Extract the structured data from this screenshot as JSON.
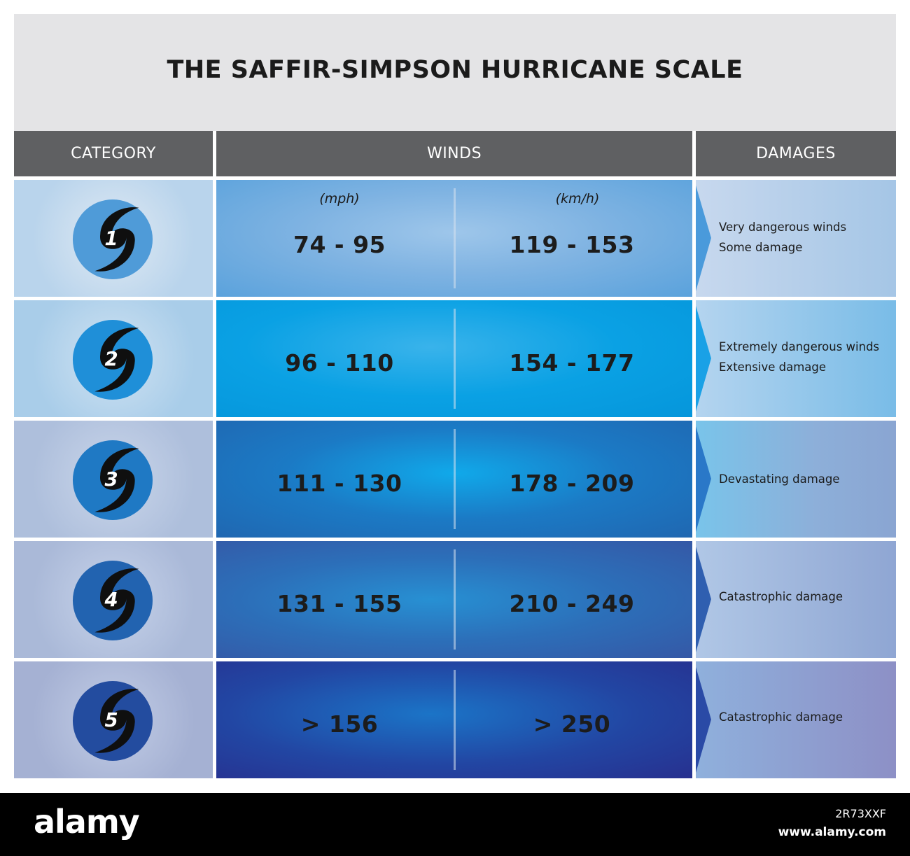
{
  "title": "THE SAFFIR-SIMPSON HURRICANE SCALE",
  "headers": {
    "category": "CATEGORY",
    "winds": "WINDS",
    "damages": "DAMAGES"
  },
  "units": {
    "mph": "(mph)",
    "kmh": "(km/h)"
  },
  "rows": [
    {
      "category": "1",
      "mph": "74 - 95",
      "kmh": "119 - 153",
      "damage": [
        "Very dangerous winds",
        "Some damage"
      ]
    },
    {
      "category": "2",
      "mph": "96 - 110",
      "kmh": "154 - 177",
      "damage": [
        "Extremely dangerous winds",
        "Extensive damage"
      ]
    },
    {
      "category": "3",
      "mph": "111 - 130",
      "kmh": "178 - 209",
      "damage": [
        "Devastating damage"
      ]
    },
    {
      "category": "4",
      "mph": "131 - 155",
      "kmh": "210 - 249",
      "damage": [
        "Catastrophic damage"
      ]
    },
    {
      "category": "5",
      "mph": "> 156",
      "kmh": "> 250",
      "damage": [
        "Catastrophic damage"
      ]
    }
  ],
  "badge_colors": [
    "#4f9bd8",
    "#1f8fd8",
    "#1f79c4",
    "#2263b0",
    "#234c9f"
  ],
  "arrow_colors": [
    "#4a9adb",
    "#1aa1e6",
    "#2a78c8",
    "#2f5fb0",
    "#2a4aa6"
  ],
  "icon": "hurricane-icon",
  "footer": {
    "logo": "alamy",
    "image_id": "2R73XXF",
    "site": "www.alamy.com"
  }
}
